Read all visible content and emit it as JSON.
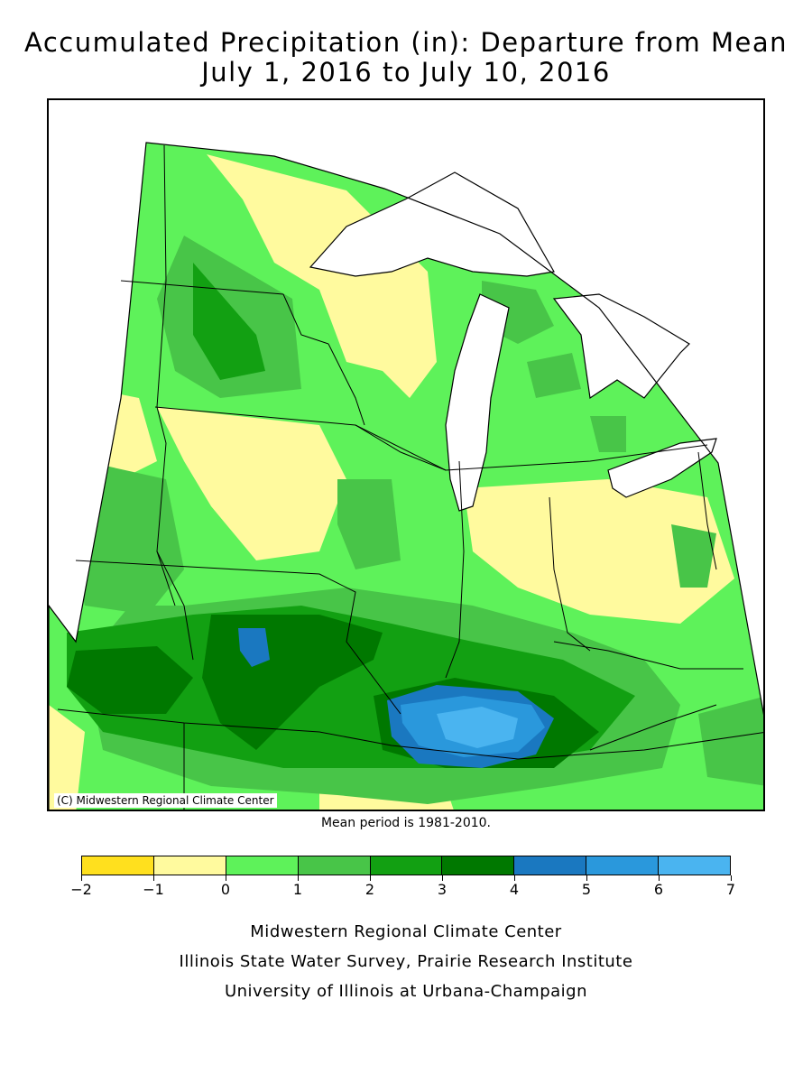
{
  "title": {
    "line1": "Accumulated Precipitation (in): Departure from Mean",
    "line2": "July 1, 2016 to July 10, 2016"
  },
  "map": {
    "copyright": "(C) Midwestern Regional Climate Center",
    "colors": {
      "water": "#ffffff",
      "border": "#000000",
      "gridline": "#b0b0b0"
    }
  },
  "mean_period": "Mean period is 1981-2010.",
  "legend": {
    "bins": [
      {
        "min": -2,
        "max": -1,
        "color": "#ffe01e"
      },
      {
        "min": -1,
        "max": 0,
        "color": "#fffa9e"
      },
      {
        "min": 0,
        "max": 1,
        "color": "#5ef25a"
      },
      {
        "min": 1,
        "max": 2,
        "color": "#48c548"
      },
      {
        "min": 2,
        "max": 3,
        "color": "#12a012"
      },
      {
        "min": 3,
        "max": 4,
        "color": "#007800"
      },
      {
        "min": 4,
        "max": 5,
        "color": "#1a78c0"
      },
      {
        "min": 5,
        "max": 6,
        "color": "#2a98dc"
      },
      {
        "min": 6,
        "max": 7,
        "color": "#4ab4f0"
      }
    ],
    "tick_labels": [
      "-2",
      "-1",
      "0",
      "1",
      "2",
      "3",
      "4",
      "5",
      "6",
      "7"
    ]
  },
  "credits": [
    "Midwestern Regional Climate Center",
    "Illinois State Water Survey, Prairie Research Institute",
    "University of Illinois at Urbana-Champaign"
  ]
}
